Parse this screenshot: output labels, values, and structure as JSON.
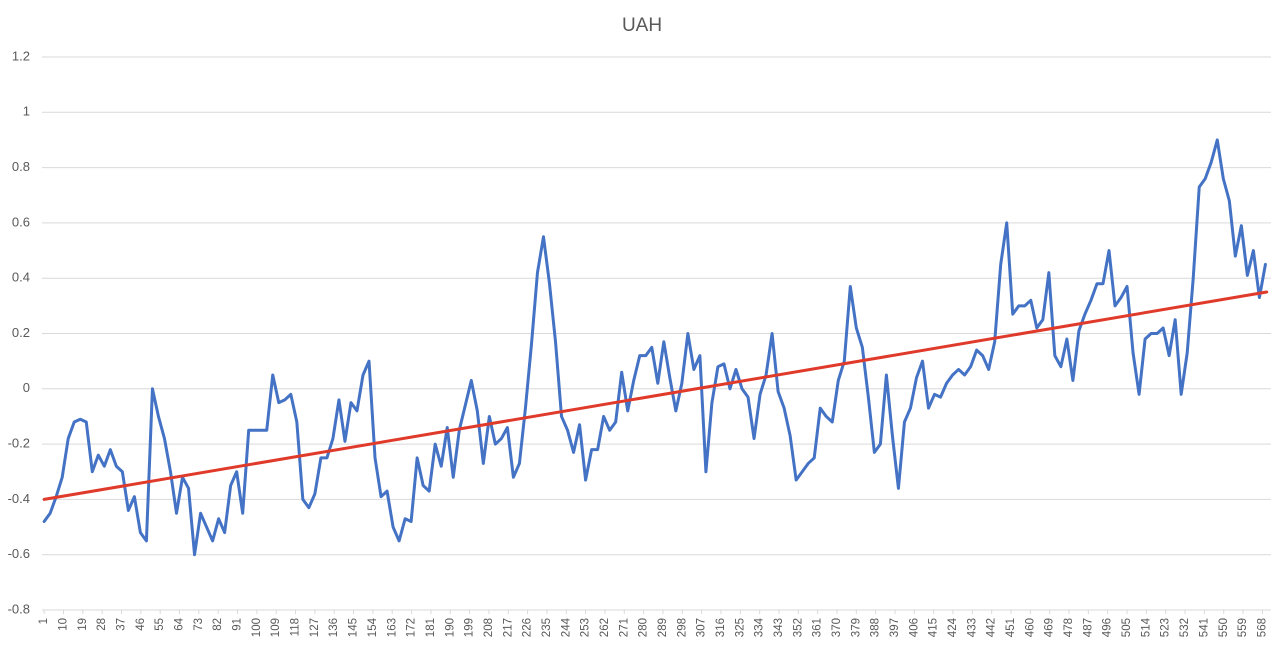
{
  "chart_data": {
    "type": "line",
    "title": "UAH",
    "xlim": [
      0,
      572
    ],
    "xticks": [
      1,
      10,
      19,
      28,
      37,
      46,
      55,
      64,
      73,
      82,
      91,
      100,
      109,
      118,
      127,
      136,
      145,
      154,
      163,
      172,
      181,
      190,
      199,
      208,
      217,
      226,
      235,
      244,
      253,
      262,
      271,
      280,
      289,
      298,
      307,
      316,
      325,
      334,
      343,
      352,
      361,
      370,
      379,
      388,
      397,
      406,
      415,
      424,
      433,
      442,
      451,
      460,
      469,
      478,
      487,
      496,
      505,
      514,
      523,
      532,
      541,
      550,
      559,
      568
    ],
    "ylim": [
      -0.8,
      1.2
    ],
    "yticks": [
      -0.8,
      -0.6,
      -0.4,
      -0.2,
      0,
      0.2,
      0.4,
      0.6,
      0.8,
      1,
      1.2
    ],
    "grid": true,
    "series": [
      {
        "color": "#4472c4",
        "x": [
          1,
          3.8,
          6.6,
          9.4,
          12.2,
          15,
          17.8,
          20.6,
          23.4,
          26.2,
          29,
          31.8,
          34.6,
          37.4,
          40.2,
          43,
          45.8,
          48.6,
          51.4,
          54.2,
          57,
          59.8,
          62.6,
          65.4,
          68.2,
          71,
          73.8,
          76.6,
          79.4,
          82.2,
          85,
          87.8,
          90.6,
          93.4,
          96.2,
          99,
          101.8,
          104.6,
          107.4,
          110.2,
          113,
          115.8,
          118.6,
          121.4,
          124.2,
          127,
          129.8,
          132.6,
          135.4,
          138.2,
          141,
          143.8,
          146.6,
          149.4,
          152.2,
          155,
          157.8,
          160.6,
          163.4,
          166.2,
          169,
          171.8,
          174.6,
          177.4,
          180.2,
          183,
          185.8,
          188.6,
          191.4,
          194.2,
          197,
          199.8,
          202.6,
          205.4,
          208.2,
          211,
          213.8,
          216.6,
          219.4,
          222.2,
          225,
          227.8,
          230.6,
          233.4,
          236.2,
          239,
          241.8,
          244.6,
          247.4,
          250.2,
          253,
          255.8,
          258.6,
          261.4,
          264.2,
          267,
          269.8,
          272.6,
          275.4,
          278.2,
          281,
          283.8,
          286.6,
          289.4,
          292.2,
          295,
          297.8,
          300.6,
          303.4,
          306.2,
          309,
          311.8,
          314.6,
          317.4,
          320.2,
          323,
          325.8,
          328.6,
          331.4,
          334.2,
          337,
          339.8,
          342.6,
          345.4,
          348.2,
          351,
          353.8,
          356.6,
          359.4,
          362.2,
          365,
          367.8,
          370.6,
          373.4,
          376.2,
          379,
          381.8,
          384.6,
          387.4,
          390.2,
          393,
          395.8,
          398.6,
          401.4,
          404.2,
          407,
          409.8,
          412.6,
          415.4,
          418.2,
          421,
          423.8,
          426.6,
          429.4,
          432.2,
          435,
          437.8,
          440.6,
          443.4,
          446.2,
          449,
          451.8,
          454.6,
          457.4,
          460.2,
          463,
          465.8,
          468.6,
          471.4,
          474.2,
          477,
          479.8,
          482.6,
          485.4,
          488.2,
          491,
          493.8,
          496.6,
          499.4,
          502.2,
          505,
          507.8,
          510.6,
          513.4,
          516.2,
          519,
          521.8,
          524.6,
          527.4,
          530.2,
          533,
          535.8,
          538.6,
          541.4,
          544.2,
          547,
          549.8,
          552.6,
          555.4,
          558.2,
          561,
          563.8,
          566.6,
          569.4
        ],
        "values": [
          -0.48,
          -0.45,
          -0.39,
          -0.32,
          -0.18,
          -0.12,
          -0.11,
          -0.12,
          -0.3,
          -0.24,
          -0.28,
          -0.22,
          -0.28,
          -0.3,
          -0.44,
          -0.39,
          -0.52,
          -0.55,
          0,
          -0.1,
          -0.18,
          -0.3,
          -0.45,
          -0.32,
          -0.36,
          -0.6,
          -0.45,
          -0.5,
          -0.55,
          -0.47,
          -0.52,
          -0.35,
          -0.3,
          -0.45,
          -0.15,
          -0.15,
          -0.15,
          -0.15,
          0.05,
          -0.05,
          -0.04,
          -0.02,
          -0.12,
          -0.4,
          -0.43,
          -0.38,
          -0.25,
          -0.25,
          -0.18,
          -0.04,
          -0.19,
          -0.05,
          -0.08,
          0.05,
          0.1,
          -0.25,
          -0.39,
          -0.37,
          -0.5,
          -0.55,
          -0.47,
          -0.48,
          -0.25,
          -0.35,
          -0.37,
          -0.2,
          -0.28,
          -0.14,
          -0.32,
          -0.15,
          -0.06,
          0.03,
          -0.08,
          -0.27,
          -0.1,
          -0.2,
          -0.18,
          -0.14,
          -0.32,
          -0.27,
          -0.07,
          0.16,
          0.42,
          0.55,
          0.38,
          0.17,
          -0.1,
          -0.15,
          -0.23,
          -0.13,
          -0.33,
          -0.22,
          -0.22,
          -0.1,
          -0.15,
          -0.12,
          0.06,
          -0.08,
          0.03,
          0.12,
          0.12,
          0.15,
          0.02,
          0.17,
          0.04,
          -0.08,
          0.02,
          0.2,
          0.07,
          0.12,
          -0.3,
          -0.05,
          0.08,
          0.09,
          0,
          0.07,
          0,
          -0.03,
          -0.18,
          -0.02,
          0.05,
          0.2,
          -0.01,
          -0.07,
          -0.17,
          -0.33,
          -0.3,
          -0.27,
          -0.25,
          -0.07,
          -0.1,
          -0.12,
          0.03,
          0.1,
          0.37,
          0.22,
          0.15,
          -0.03,
          -0.23,
          -0.2,
          0.05,
          -0.17,
          -0.36,
          -0.12,
          -0.07,
          0.04,
          0.1,
          -0.07,
          -0.02,
          -0.03,
          0.02,
          0.05,
          0.07,
          0.05,
          0.08,
          0.14,
          0.12,
          0.07,
          0.17,
          0.45,
          0.6,
          0.27,
          0.3,
          0.3,
          0.32,
          0.22,
          0.25,
          0.42,
          0.12,
          0.08,
          0.18,
          0.03,
          0.21,
          0.27,
          0.32,
          0.38,
          0.38,
          0.5,
          0.3,
          0.33,
          0.37,
          0.13,
          -0.02,
          0.18,
          0.2,
          0.2,
          0.22,
          0.12,
          0.25,
          -0.02,
          0.13,
          0.4,
          0.73,
          0.76,
          0.82,
          0.9,
          0.76,
          0.68,
          0.48,
          0.59,
          0.41,
          0.5,
          0.33,
          0.45
        ]
      },
      {
        "color": "#e03a2b",
        "x": [
          1,
          570
        ],
        "values": [
          -0.4,
          0.35
        ]
      }
    ]
  }
}
